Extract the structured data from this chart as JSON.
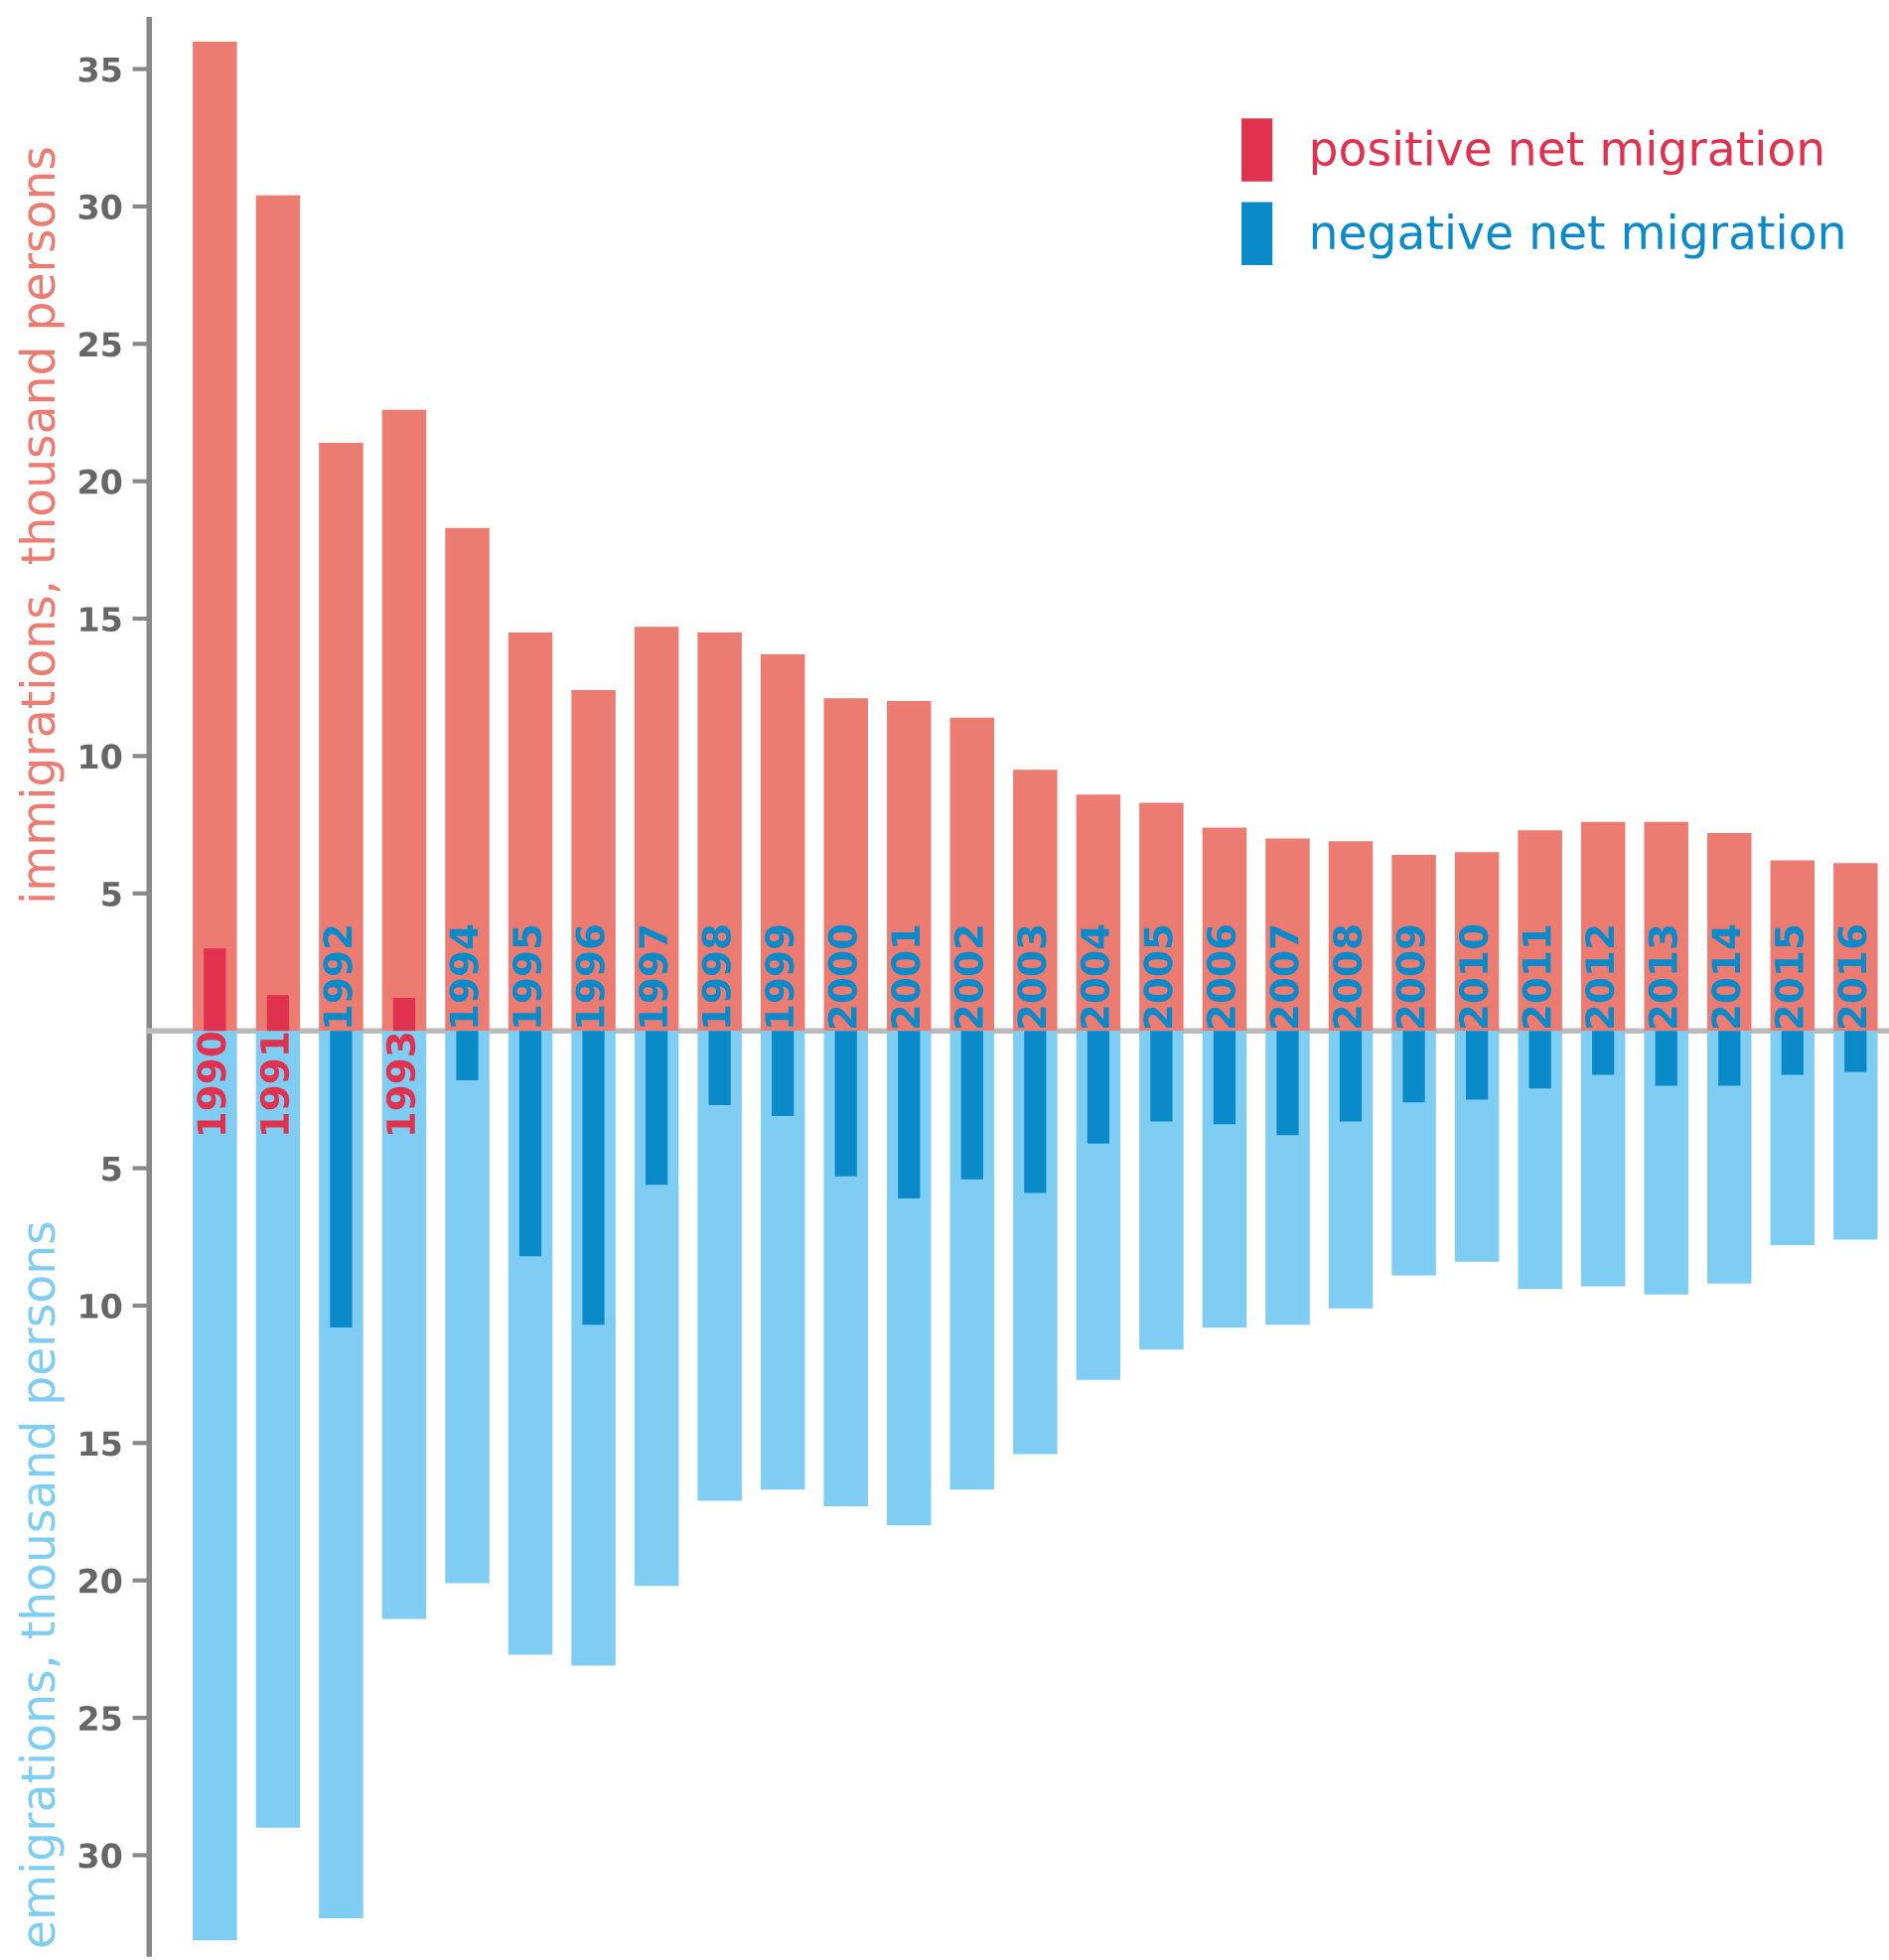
{
  "chart_data": [
    {
      "type": "bar",
      "categories": [
        "1990",
        "1991",
        "1992",
        "1993",
        "1994",
        "1995",
        "1996",
        "1997",
        "1998",
        "1999",
        "2000",
        "2001",
        "2002",
        "2003",
        "2004",
        "2005",
        "2006",
        "2007",
        "2008",
        "2009",
        "2010",
        "2011",
        "2012",
        "2013",
        "2014",
        "2015",
        "2016"
      ],
      "series": [
        {
          "color": "#ec7b72",
          "values": [
            36.0,
            30.4,
            21.4,
            22.6,
            18.3,
            14.5,
            12.4,
            14.7,
            14.5,
            13.7,
            12.1,
            12.0,
            11.4,
            9.5,
            8.6,
            8.3,
            7.4,
            7.0,
            6.9,
            6.4,
            6.5,
            7.3,
            7.6,
            7.6,
            7.2,
            6.2,
            6.1
          ]
        },
        {
          "color": "#7fcdf2",
          "values": [
            -33.1,
            -29.0,
            -32.3,
            -21.4,
            -20.1,
            -22.7,
            -23.1,
            -20.2,
            -17.1,
            -16.7,
            -17.3,
            -18.0,
            -16.7,
            -15.4,
            -12.7,
            -11.6,
            -10.8,
            -10.7,
            -10.1,
            -8.9,
            -8.4,
            -9.4,
            -9.3,
            -9.6,
            -9.2,
            -7.8,
            -7.6
          ]
        }
      ],
      "stacked": true,
      "ylabel": "immigrations, thousand persons",
      "annotations": [
        "emigrations, thousand persons"
      ],
      "ylim": [
        -33.6,
        36.8
      ],
      "yticks": [
        {
          "value": -30,
          "label": "30"
        },
        {
          "value": -25,
          "label": "25"
        },
        {
          "value": -20,
          "label": "20"
        },
        {
          "value": -15,
          "label": "15"
        },
        {
          "value": -10,
          "label": "10"
        },
        {
          "value": -5,
          "label": "5"
        },
        5,
        10,
        15,
        20,
        25,
        30,
        35
      ],
      "tick_labels": "y",
      "grid": false
    },
    {
      "type": "bar",
      "categories": [
        "1990",
        "1991",
        "1992",
        "1993",
        "1994",
        "1995",
        "1996",
        "1997",
        "1998",
        "1999",
        "2000",
        "2001",
        "2002",
        "2003",
        "2004",
        "2005",
        "2006",
        "2007",
        "2008",
        "2009",
        "2010",
        "2011",
        "2012",
        "2013",
        "2014",
        "2015",
        "2016"
      ],
      "series": [
        {
          "name": "positive net migration",
          "color": "#e0324e",
          "values": [
            3.0,
            1.3,
            null,
            1.2,
            null,
            null,
            null,
            null,
            null,
            null,
            null,
            null,
            null,
            null,
            null,
            null,
            null,
            null,
            null,
            null,
            null,
            null,
            null,
            null,
            null,
            null,
            null
          ]
        },
        {
          "name": "negative net migration",
          "color": "#0a8ac9",
          "values": [
            null,
            null,
            -10.8,
            null,
            -1.8,
            -8.2,
            -10.7,
            -5.6,
            -2.7,
            -3.1,
            -5.3,
            -6.1,
            -5.4,
            -5.9,
            -4.1,
            -3.3,
            -3.4,
            -3.8,
            -3.3,
            -2.6,
            -2.5,
            -2.1,
            -1.6,
            -2.0,
            -2.0,
            -1.6,
            -1.5
          ]
        }
      ],
      "ylim": [
        -33.6,
        36.8
      ],
      "tick_labels": "x",
      "grid": false,
      "legend": "top right"
    }
  ]
}
